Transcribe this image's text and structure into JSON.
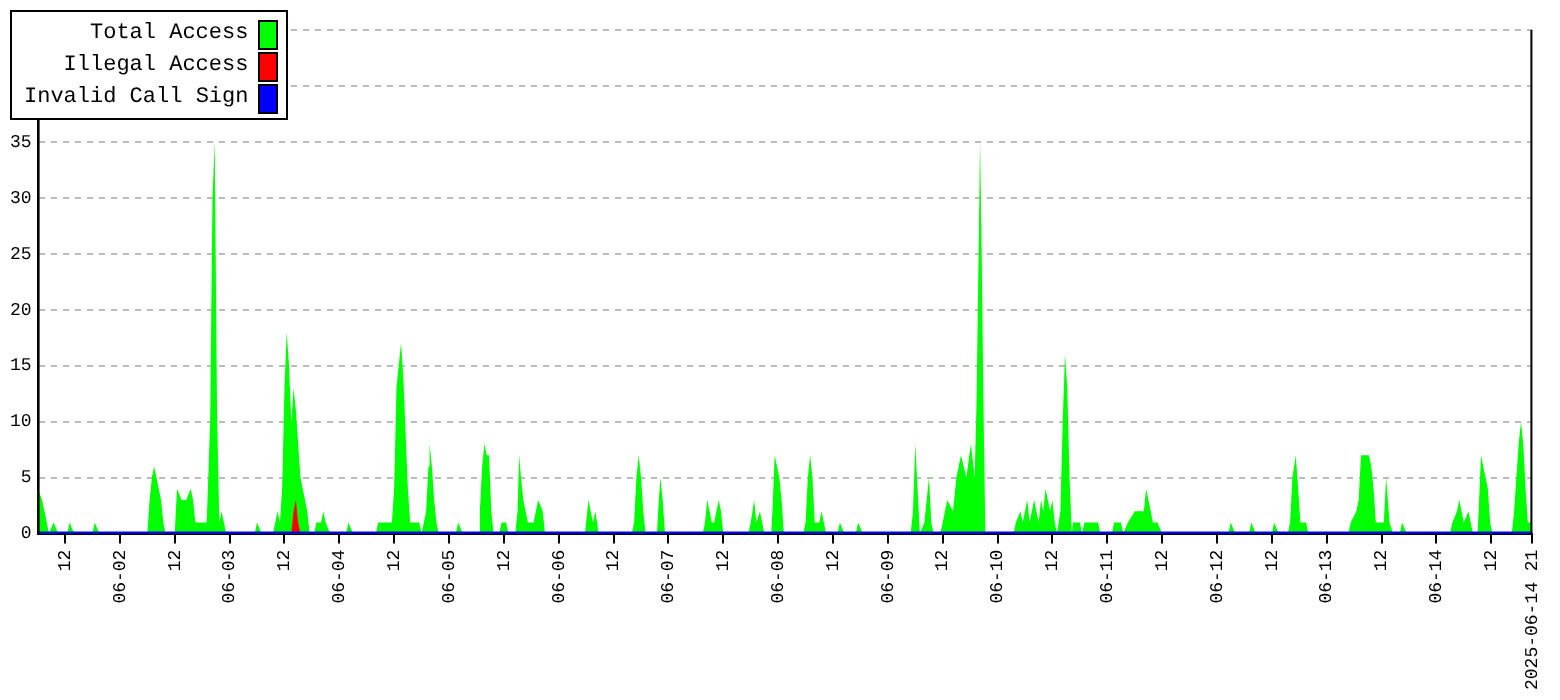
{
  "chart_data": {
    "type": "area",
    "xlim": [
      "2025-06-01T06:00",
      "2025-06-14T21:00"
    ],
    "xticks": [
      {
        "value": "2025-06-01T12:00",
        "label": "12"
      },
      {
        "value": "2025-06-02",
        "label": "06-02"
      },
      {
        "value": "2025-06-02T12:00",
        "label": "12"
      },
      {
        "value": "2025-06-03",
        "label": "06-03"
      },
      {
        "value": "2025-06-03T12:00",
        "label": "12"
      },
      {
        "value": "2025-06-04",
        "label": "06-04"
      },
      {
        "value": "2025-06-04T12:00",
        "label": "12"
      },
      {
        "value": "2025-06-05",
        "label": "06-05"
      },
      {
        "value": "2025-06-05T12:00",
        "label": "12"
      },
      {
        "value": "2025-06-06",
        "label": "06-06"
      },
      {
        "value": "2025-06-06T12:00",
        "label": "12"
      },
      {
        "value": "2025-06-07",
        "label": "06-07"
      },
      {
        "value": "2025-06-07T12:00",
        "label": "12"
      },
      {
        "value": "2025-06-08",
        "label": "06-08"
      },
      {
        "value": "2025-06-08T12:00",
        "label": "12"
      },
      {
        "value": "2025-06-09",
        "label": "06-09"
      },
      {
        "value": "2025-06-09T12:00",
        "label": "12"
      },
      {
        "value": "2025-06-10",
        "label": "06-10"
      },
      {
        "value": "2025-06-10T12:00",
        "label": "12"
      },
      {
        "value": "2025-06-11",
        "label": "06-11"
      },
      {
        "value": "2025-06-11T12:00",
        "label": "12"
      },
      {
        "value": "2025-06-12",
        "label": "06-12"
      },
      {
        "value": "2025-06-12T12:00",
        "label": "12"
      },
      {
        "value": "2025-06-13",
        "label": "06-13"
      },
      {
        "value": "2025-06-13T12:00",
        "label": "12"
      },
      {
        "value": "2025-06-14",
        "label": "06-14"
      },
      {
        "value": "2025-06-14T12:00",
        "label": "12"
      },
      {
        "value": "2025-06-14T21:00",
        "label": "2025-06-14 21"
      }
    ],
    "ylim": [
      0,
      45
    ],
    "yticks": [
      0,
      5,
      10,
      15,
      20,
      25,
      30,
      35,
      {
        "value": 40,
        "label": null
      },
      {
        "value": 45,
        "label": null
      }
    ],
    "grid": "y",
    "legend": "top left",
    "series": [
      {
        "name": "Total Access",
        "color": "#00ff00",
        "x": [
          "2025-06-01T06:00",
          "2025-06-01T07:00",
          "2025-06-01T08:00",
          "2025-06-01T08:30",
          "2025-06-01T09:30",
          "2025-06-01T10:30",
          "2025-06-01T12:30",
          "2025-06-01T13:00",
          "2025-06-01T14:00",
          "2025-06-01T18:00",
          "2025-06-01T18:30",
          "2025-06-01T19:30",
          "2025-06-02T06:00",
          "2025-06-02T06:30",
          "2025-06-02T07:00",
          "2025-06-02T07:30",
          "2025-06-02T08:00",
          "2025-06-02T09:00",
          "2025-06-02T09:30",
          "2025-06-02T10:00",
          "2025-06-02T12:00",
          "2025-06-02T12:30",
          "2025-06-02T13:30",
          "2025-06-02T14:30",
          "2025-06-02T15:30",
          "2025-06-02T16:00",
          "2025-06-02T16:30",
          "2025-06-02T19:00",
          "2025-06-02T19:45",
          "2025-06-02T20:15",
          "2025-06-02T20:45",
          "2025-06-02T21:15",
          "2025-06-02T21:45",
          "2025-06-02T22:15",
          "2025-06-02T22:45",
          "2025-06-02T23:15",
          "2025-06-03T05:30",
          "2025-06-03T06:00",
          "2025-06-03T07:00",
          "2025-06-03T09:30",
          "2025-06-03T10:00",
          "2025-06-03T10:30",
          "2025-06-03T11:00",
          "2025-06-03T11:30",
          "2025-06-03T12:00",
          "2025-06-03T12:30",
          "2025-06-03T13:00",
          "2025-06-03T13:30",
          "2025-06-03T14:00",
          "2025-06-03T14:30",
          "2025-06-03T15:00",
          "2025-06-03T15:30",
          "2025-06-03T16:00",
          "2025-06-03T16:30",
          "2025-06-03T17:00",
          "2025-06-03T17:30",
          "2025-06-03T18:30",
          "2025-06-03T19:00",
          "2025-06-03T20:00",
          "2025-06-03T20:30",
          "2025-06-03T21:00",
          "2025-06-03T22:00",
          "2025-06-04T01:30",
          "2025-06-04T02:00",
          "2025-06-04T03:00",
          "2025-06-04T08:00",
          "2025-06-04T08:30",
          "2025-06-04T11:30",
          "2025-06-04T12:00",
          "2025-06-04T12:30",
          "2025-06-04T13:30",
          "2025-06-04T14:00",
          "2025-06-04T14:30",
          "2025-06-04T15:00",
          "2025-06-04T15:30",
          "2025-06-04T17:30",
          "2025-06-04T18:00",
          "2025-06-04T19:00",
          "2025-06-04T19:30",
          "2025-06-04T19:45",
          "2025-06-04T20:15",
          "2025-06-04T20:45",
          "2025-06-04T21:15",
          "2025-06-04T21:45",
          "2025-06-05T01:30",
          "2025-06-05T02:00",
          "2025-06-05T03:00",
          "2025-06-05T06:30",
          "2025-06-05T06:45",
          "2025-06-05T07:15",
          "2025-06-05T07:45",
          "2025-06-05T08:15",
          "2025-06-05T08:45",
          "2025-06-05T09:15",
          "2025-06-05T09:45",
          "2025-06-05T11:00",
          "2025-06-05T11:30",
          "2025-06-05T12:30",
          "2025-06-05T13:00",
          "2025-06-05T14:30",
          "2025-06-05T15:00",
          "2025-06-05T15:20",
          "2025-06-05T15:45",
          "2025-06-05T16:15",
          "2025-06-05T16:45",
          "2025-06-05T17:15",
          "2025-06-05T18:30",
          "2025-06-05T19:30",
          "2025-06-05T20:30",
          "2025-06-05T21:00",
          "2025-06-06T05:45",
          "2025-06-06T06:00",
          "2025-06-06T06:30",
          "2025-06-06T07:00",
          "2025-06-06T07:30",
          "2025-06-06T08:00",
          "2025-06-06T08:45",
          "2025-06-06T16:00",
          "2025-06-06T16:30",
          "2025-06-06T17:00",
          "2025-06-06T17:30",
          "2025-06-06T18:00",
          "2025-06-06T18:30",
          "2025-06-06T19:00",
          "2025-06-06T21:30",
          "2025-06-06T21:45",
          "2025-06-06T22:15",
          "2025-06-06T22:45",
          "2025-06-06T23:15",
          "2025-06-07T07:30",
          "2025-06-07T08:00",
          "2025-06-07T08:30",
          "2025-06-07T09:30",
          "2025-06-07T10:00",
          "2025-06-07T11:00",
          "2025-06-07T11:30",
          "2025-06-07T12:00",
          "2025-06-07T17:30",
          "2025-06-07T18:00",
          "2025-06-07T18:45",
          "2025-06-07T19:15",
          "2025-06-07T20:00",
          "2025-06-07T20:30",
          "2025-06-07T21:00",
          "2025-06-07T22:30",
          "2025-06-07T22:45",
          "2025-06-07T23:15",
          "2025-06-07T23:45",
          "2025-06-08T00:15",
          "2025-06-08T00:45",
          "2025-06-08T01:15",
          "2025-06-08T05:30",
          "2025-06-08T06:00",
          "2025-06-08T06:30",
          "2025-06-08T07:00",
          "2025-06-08T07:30",
          "2025-06-08T08:00",
          "2025-06-08T09:00",
          "2025-06-08T09:30",
          "2025-06-08T10:00",
          "2025-06-08T10:30",
          "2025-06-08T13:00",
          "2025-06-08T13:30",
          "2025-06-08T14:30",
          "2025-06-08T17:00",
          "2025-06-08T17:30",
          "2025-06-08T18:30",
          "2025-06-09T05:00",
          "2025-06-09T05:30",
          "2025-06-09T06:00",
          "2025-06-09T06:30",
          "2025-06-09T07:00",
          "2025-06-09T08:00",
          "2025-06-09T09:00",
          "2025-06-09T09:30",
          "2025-06-09T10:00",
          "2025-06-09T11:30",
          "2025-06-09T12:00",
          "2025-06-09T13:00",
          "2025-06-09T14:15",
          "2025-06-09T15:00",
          "2025-06-09T16:00",
          "2025-06-09T17:10",
          "2025-06-09T17:50",
          "2025-06-09T18:10",
          "2025-06-09T19:00",
          "2025-06-09T19:25",
          "2025-06-09T19:55",
          "2025-06-09T20:10",
          "2025-06-09T20:30",
          "2025-06-09T21:00",
          "2025-06-09T21:20",
          "2025-06-10T03:30",
          "2025-06-10T04:00",
          "2025-06-10T05:00",
          "2025-06-10T05:30",
          "2025-06-10T06:00",
          "2025-06-10T06:30",
          "2025-06-10T07:00",
          "2025-06-10T07:30",
          "2025-06-10T08:00",
          "2025-06-10T08:30",
          "2025-06-10T09:00",
          "2025-06-10T09:30",
          "2025-06-10T10:00",
          "2025-06-10T10:30",
          "2025-06-10T11:00",
          "2025-06-10T11:30",
          "2025-06-10T12:00",
          "2025-06-10T12:30",
          "2025-06-10T13:00",
          "2025-06-10T13:45",
          "2025-06-10T14:15",
          "2025-06-10T14:45",
          "2025-06-10T15:15",
          "2025-06-10T15:45",
          "2025-06-10T16:15",
          "2025-06-10T16:30",
          "2025-06-10T18:00",
          "2025-06-10T18:30",
          "2025-06-10T19:00",
          "2025-06-10T22:00",
          "2025-06-10T22:30",
          "2025-06-11T01:00",
          "2025-06-11T01:30",
          "2025-06-11T03:00",
          "2025-06-11T03:30",
          "2025-06-11T04:30",
          "2025-06-11T06:00",
          "2025-06-11T08:00",
          "2025-06-11T08:30",
          "2025-06-11T09:30",
          "2025-06-11T10:00",
          "2025-06-11T11:00",
          "2025-06-11T12:00",
          "2025-06-12T02:30",
          "2025-06-12T03:00",
          "2025-06-12T04:00",
          "2025-06-12T07:00",
          "2025-06-12T07:30",
          "2025-06-12T08:30",
          "2025-06-12T12:00",
          "2025-06-12T12:30",
          "2025-06-12T13:30",
          "2025-06-12T15:30",
          "2025-06-12T16:00",
          "2025-06-12T16:30",
          "2025-06-12T17:15",
          "2025-06-12T17:45",
          "2025-06-12T18:15",
          "2025-06-12T19:30",
          "2025-06-12T20:00",
          "2025-06-13T04:45",
          "2025-06-13T05:15",
          "2025-06-13T06:30",
          "2025-06-13T07:00",
          "2025-06-13T07:30",
          "2025-06-13T09:15",
          "2025-06-13T09:45",
          "2025-06-13T10:15",
          "2025-06-13T10:45",
          "2025-06-13T12:30",
          "2025-06-13T13:00",
          "2025-06-13T13:45",
          "2025-06-13T14:30",
          "2025-06-13T16:00",
          "2025-06-13T16:30",
          "2025-06-13T17:30",
          "2025-06-14T03:00",
          "2025-06-14T03:30",
          "2025-06-14T04:30",
          "2025-06-14T05:00",
          "2025-06-14T05:30",
          "2025-06-14T06:00",
          "2025-06-14T07:00",
          "2025-06-14T07:30",
          "2025-06-14T08:00",
          "2025-06-14T09:00",
          "2025-06-14T09:15",
          "2025-06-14T09:45",
          "2025-06-14T10:15",
          "2025-06-14T10:45",
          "2025-06-14T11:15",
          "2025-06-14T11:45",
          "2025-06-14T12:15",
          "2025-06-14T16:30",
          "2025-06-14T17:00",
          "2025-06-14T17:30",
          "2025-06-14T18:00",
          "2025-06-14T18:30",
          "2025-06-14T19:00",
          "2025-06-14T19:30",
          "2025-06-14T20:00",
          "2025-06-14T21:00"
        ],
        "values": [
          4,
          3,
          1,
          0,
          1,
          0,
          0,
          1,
          0,
          0,
          1,
          0,
          0,
          3,
          5,
          6,
          5,
          3,
          1,
          0,
          0,
          4,
          3,
          3,
          4,
          3,
          1,
          1,
          10,
          30,
          35,
          11,
          1,
          2,
          1,
          0,
          0,
          1,
          0,
          0,
          1,
          2,
          1,
          4,
          13,
          18,
          15,
          10,
          13,
          11,
          8,
          5,
          4,
          3,
          2,
          0,
          0,
          1,
          1,
          2,
          1,
          0,
          0,
          1,
          0,
          0,
          1,
          1,
          4,
          13,
          17,
          14,
          9,
          4,
          1,
          1,
          0,
          2,
          6,
          8,
          6,
          3,
          1,
          0,
          0,
          1,
          0,
          0,
          2,
          6,
          8,
          7,
          7,
          2,
          0,
          0,
          1,
          1,
          0,
          0,
          2,
          7,
          5,
          3,
          2,
          1,
          1,
          3,
          2,
          0,
          0,
          1,
          3,
          2,
          1,
          2,
          0,
          0,
          1,
          5,
          7,
          5,
          2,
          0,
          0,
          2,
          5,
          3,
          0,
          0,
          1,
          3,
          1,
          1,
          3,
          2,
          0,
          0,
          1,
          3,
          1,
          2,
          1,
          0,
          0,
          2,
          7,
          6,
          5,
          3,
          0,
          0,
          1,
          5,
          7,
          5,
          1,
          1,
          2,
          1,
          0,
          0,
          1,
          0,
          0,
          1,
          0,
          0,
          2,
          8,
          4,
          0,
          1,
          5,
          1,
          0,
          0,
          1,
          3,
          2,
          5,
          7,
          5,
          7,
          8,
          5,
          12,
          27,
          35,
          26,
          9,
          0,
          0,
          1,
          2,
          1,
          2,
          3,
          1,
          2,
          3,
          2,
          1,
          3,
          2,
          4,
          3,
          2,
          3,
          1,
          0,
          2,
          10,
          16,
          13,
          5,
          0,
          1,
          1,
          0,
          1,
          1,
          0,
          0,
          1,
          1,
          0,
          1,
          2,
          2,
          4,
          2,
          1,
          1,
          0,
          0,
          1,
          0,
          0,
          1,
          0,
          0,
          1,
          0,
          0,
          1,
          5,
          7,
          4,
          1,
          1,
          0,
          0,
          1,
          2,
          3,
          7,
          7,
          6,
          4,
          1,
          1,
          5,
          1,
          0,
          0,
          1,
          0,
          0,
          1,
          2,
          3,
          2,
          1,
          2,
          1,
          0,
          0,
          2,
          7,
          6,
          5,
          4,
          1,
          0,
          0,
          2,
          5,
          8,
          10,
          8,
          4,
          1,
          1
        ]
      },
      {
        "name": "Illegal Access",
        "color": "#ff0000",
        "x": [
          "2025-06-01T06:00",
          "2025-06-03T13:30",
          "2025-06-03T14:00",
          "2025-06-03T14:30",
          "2025-06-03T15:00",
          "2025-06-03T15:30",
          "2025-06-14T21:00"
        ],
        "values": [
          0,
          0,
          2,
          3,
          1,
          0,
          0
        ]
      },
      {
        "name": "Invalid Call Sign",
        "type": "line",
        "color": "#0000ff",
        "x": [
          "2025-06-01T06:00",
          "2025-06-14T21:00"
        ],
        "values": [
          0,
          0
        ]
      }
    ]
  }
}
